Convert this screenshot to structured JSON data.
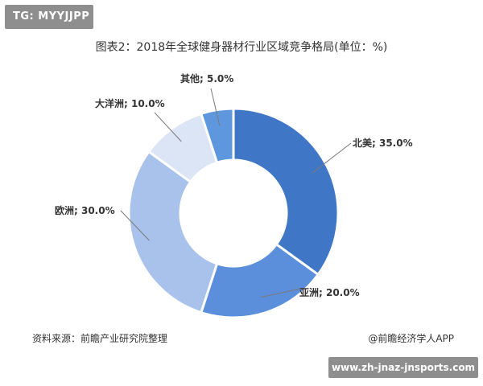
{
  "badge": {
    "text": "TG: MYYJJPP"
  },
  "footer": {
    "source": "资料来源：前瞻产业研究院整理",
    "credit": "@前瞻经济学人APP"
  },
  "banner": {
    "url": "www.zh-jnaz-jnsports.com"
  },
  "chart_data": {
    "type": "pie",
    "title": "图表2：2018年全球健身器材行业区域竞争格局(单位：%)",
    "donut": true,
    "slices": [
      {
        "label": "北美",
        "value": 35.0,
        "display": "北美; 35.0%",
        "color": "#3f77c6"
      },
      {
        "label": "亚洲",
        "value": 20.0,
        "display": "亚洲; 20.0%",
        "color": "#5b8fdb"
      },
      {
        "label": "欧洲",
        "value": 30.0,
        "display": "欧洲; 30.0%",
        "color": "#a8c2ec"
      },
      {
        "label": "大洋洲",
        "value": 10.0,
        "display": "大洋洲; 10.0%",
        "color": "#dbe5f6"
      },
      {
        "label": "其他",
        "value": 5.0,
        "display": "其他; 5.0%",
        "color": "#5e97de"
      }
    ]
  }
}
